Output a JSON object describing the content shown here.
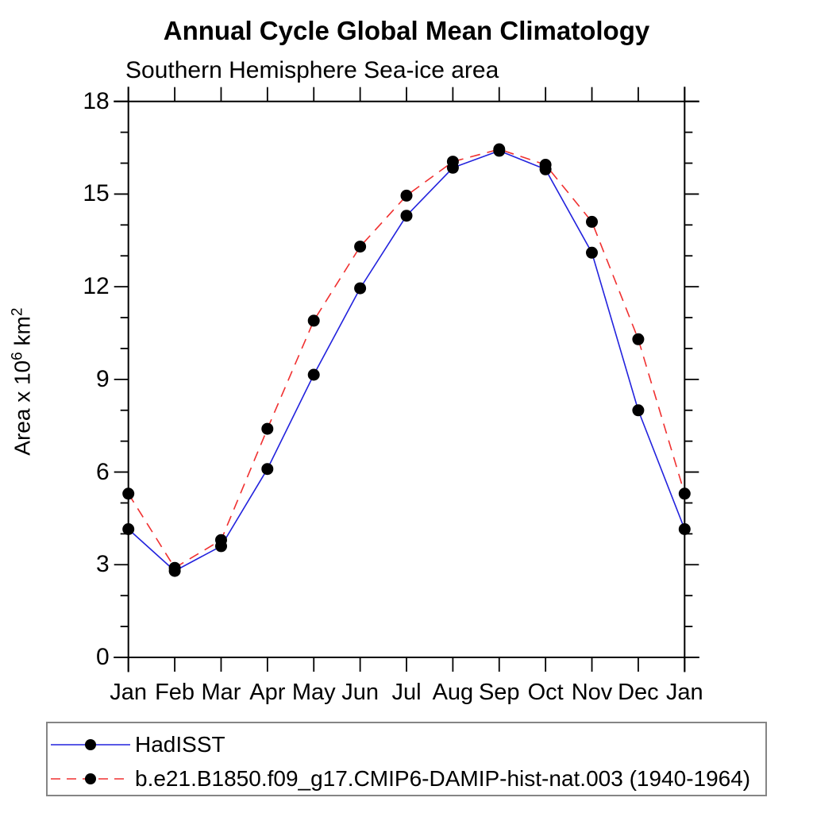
{
  "chart_data": {
    "type": "line",
    "title": "Annual Cycle Global Mean Climatology",
    "subtitle": "Southern Hemisphere Sea-ice area",
    "ylabel": {
      "text_main": "Area x 10",
      "sup1": "6",
      "text_mid": " km",
      "sup2": "2"
    },
    "categories": [
      "Jan",
      "Feb",
      "Mar",
      "Apr",
      "May",
      "Jun",
      "Jul",
      "Aug",
      "Sep",
      "Oct",
      "Nov",
      "Dec",
      "Jan"
    ],
    "series": [
      {
        "name": "HadISST",
        "color": "#2222dd",
        "style": "solid",
        "values": [
          4.15,
          2.8,
          3.6,
          6.1,
          9.15,
          11.95,
          14.3,
          15.85,
          16.4,
          15.8,
          13.1,
          8.0,
          4.15
        ]
      },
      {
        "name": "b.e21.B1850.f09_g17.CMIP6-DAMIP-hist-nat.003 (1940-1964)",
        "color": "#f03030",
        "style": "dashed",
        "values": [
          5.3,
          2.9,
          3.8,
          7.4,
          10.9,
          13.3,
          14.95,
          16.05,
          16.45,
          15.95,
          14.1,
          10.3,
          5.3
        ]
      }
    ],
    "ylim": [
      0,
      18
    ],
    "yticks": [
      0,
      3,
      6,
      9,
      12,
      15,
      18
    ],
    "minor_tick_step": 1,
    "marker_color": "#000000",
    "axis_color": "#000000",
    "legend_position": "bottom",
    "grid": false
  }
}
